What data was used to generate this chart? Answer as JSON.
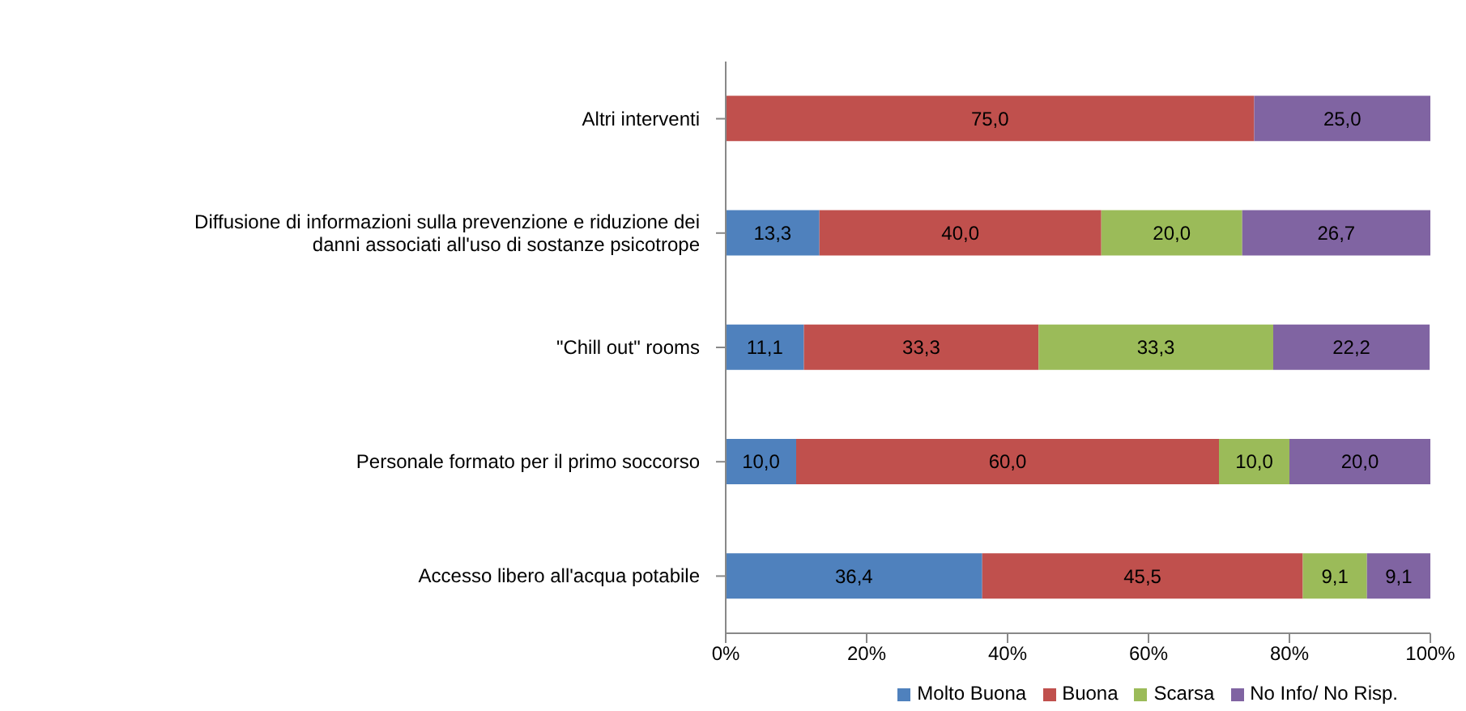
{
  "chart_data": {
    "type": "bar",
    "orientation": "horizontal",
    "stacked": true,
    "categories": [
      "Altri interventi",
      "Diffusione di informazioni sulla prevenzione e riduzione dei danni associati all'uso di sostanze psicotrope",
      "\"Chill out\" rooms",
      "Personale formato per il primo soccorso",
      "Accesso libero all'acqua potabile"
    ],
    "series": [
      {
        "name": "Molto Buona",
        "color": "#4f81bd",
        "values": [
          null,
          13.3,
          11.1,
          10.0,
          36.4
        ],
        "value_labels": [
          null,
          "13,3",
          "11,1",
          "10,0",
          "36,4"
        ]
      },
      {
        "name": "Buona",
        "color": "#c0504d",
        "values": [
          75.0,
          40.0,
          33.3,
          60.0,
          45.5
        ],
        "value_labels": [
          "75,0",
          "40,0",
          "33,3",
          "60,0",
          "45,5"
        ]
      },
      {
        "name": "Scarsa",
        "color": "#9bbb59",
        "values": [
          null,
          20.0,
          33.3,
          10.0,
          9.1
        ],
        "value_labels": [
          null,
          "20,0",
          "33,3",
          "10,0",
          "9,1"
        ]
      },
      {
        "name": "No Info/ No Risp.",
        "color": "#8064a2",
        "values": [
          25.0,
          26.7,
          22.2,
          20.0,
          9.1
        ],
        "value_labels": [
          "25,0",
          "26,7",
          "22,2",
          "20,0",
          "9,1"
        ]
      }
    ],
    "xlim": [
      0,
      100
    ],
    "xticks": [
      {
        "value": 0,
        "label": "0%"
      },
      {
        "value": 20,
        "label": "20%"
      },
      {
        "value": 40,
        "label": "40%"
      },
      {
        "value": 60,
        "label": "60%"
      },
      {
        "value": 80,
        "label": "80%"
      },
      {
        "value": 100,
        "label": "100%"
      }
    ],
    "legend": "bottom right",
    "grid": false
  }
}
